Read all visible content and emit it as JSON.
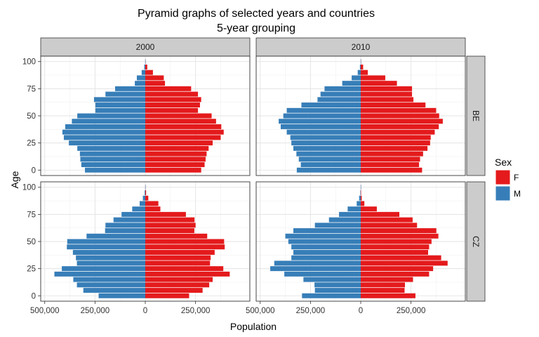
{
  "chart_data": {
    "type": "bar",
    "orientation": "horizontal-population-pyramid",
    "title": "Pyramid graphs of selected years and countries",
    "subtitle": "5-year grouping",
    "xlabel": "Population",
    "ylabel": "Age",
    "xlim": [
      -520000,
      520000
    ],
    "ylim": [
      -5,
      105
    ],
    "x_ticks": [
      -500000,
      -250000,
      0,
      250000
    ],
    "x_tick_labels": [
      "500,000",
      "250,000",
      "0",
      "250,000"
    ],
    "y_ticks": [
      0,
      25,
      50,
      75,
      100
    ],
    "y_tick_labels": [
      "0",
      "25",
      "50",
      "75",
      "100"
    ],
    "age_groups": [
      0,
      5,
      10,
      15,
      20,
      25,
      30,
      35,
      40,
      45,
      50,
      55,
      60,
      65,
      70,
      75,
      80,
      85,
      90,
      95,
      100
    ],
    "bar_width_years": 4.5,
    "grid": true,
    "legend": {
      "title": "Sex",
      "position": "right",
      "entries": [
        {
          "label": "F",
          "color": "#E41A1C"
        },
        {
          "label": "M",
          "color": "#377EB8"
        }
      ]
    },
    "facet_columns": [
      "2000",
      "2010"
    ],
    "facet_rows": [
      "BE",
      "CZ"
    ],
    "panels": [
      {
        "year": "2000",
        "country": "BE",
        "series": [
          {
            "name": "F",
            "values": [
              278000,
              295000,
              300000,
              305000,
              315000,
              335000,
              375000,
              390000,
              378000,
              352000,
              330000,
              262000,
              272000,
              278000,
              262000,
              228000,
              98000,
              92000,
              38000,
              10000,
              1000
            ]
          },
          {
            "name": "M",
            "values": [
              -300000,
              -318000,
              -323000,
              -325000,
              -338000,
              -380000,
              -405000,
              -412000,
              -398000,
              -365000,
              -338000,
              -248000,
              -248000,
              -255000,
              -198000,
              -150000,
              -52000,
              -42000,
              -18000,
              -5000,
              -500
            ]
          }
        ]
      },
      {
        "year": "2010",
        "country": "BE",
        "series": [
          {
            "name": "F",
            "values": [
              305000,
              290000,
              295000,
              310000,
              332000,
              345000,
              348000,
              368000,
              388000,
              408000,
              390000,
              375000,
              322000,
              262000,
              255000,
              255000,
              180000,
              122000,
              35000,
              12000,
              1000
            ]
          },
          {
            "name": "M",
            "values": [
              -318000,
              -298000,
              -308000,
              -320000,
              -335000,
              -345000,
              -350000,
              -368000,
              -398000,
              -408000,
              -385000,
              -368000,
              -295000,
              -215000,
              -200000,
              -180000,
              -92000,
              -45000,
              -15000,
              -4000,
              -500
            ]
          }
        ]
      },
      {
        "year": "2000",
        "country": "CZ",
        "series": [
          {
            "name": "F",
            "values": [
              218000,
              285000,
              318000,
              335000,
              420000,
              388000,
              322000,
              325000,
              345000,
              395000,
              392000,
              308000,
              244000,
              250000,
              245000,
              202000,
              75000,
              65000,
              15000,
              4000,
              500
            ]
          },
          {
            "name": "M",
            "values": [
              -232000,
              -308000,
              -340000,
              -358000,
              -452000,
              -415000,
              -340000,
              -345000,
              -360000,
              -390000,
              -388000,
              -292000,
              -200000,
              -198000,
              -158000,
              -118000,
              -65000,
              -28000,
              -12000,
              -3000,
              -500
            ]
          }
        ]
      },
      {
        "year": "2010",
        "country": "CZ",
        "series": [
          {
            "name": "F",
            "values": [
              272000,
              218000,
              220000,
              260000,
              340000,
              360000,
              432000,
              400000,
              335000,
              340000,
              352000,
              386000,
              376000,
              280000,
              258000,
              192000,
              80000,
              18000,
              5000,
              1000,
              300
            ]
          },
          {
            "name": "M",
            "values": [
              -292000,
              -228000,
              -230000,
              -285000,
              -380000,
              -450000,
              -430000,
              -345000,
              -335000,
              -345000,
              -360000,
              -375000,
              -335000,
              -228000,
              -158000,
              -108000,
              -65000,
              -20000,
              -8000,
              -2000,
              -300
            ]
          }
        ]
      }
    ]
  }
}
